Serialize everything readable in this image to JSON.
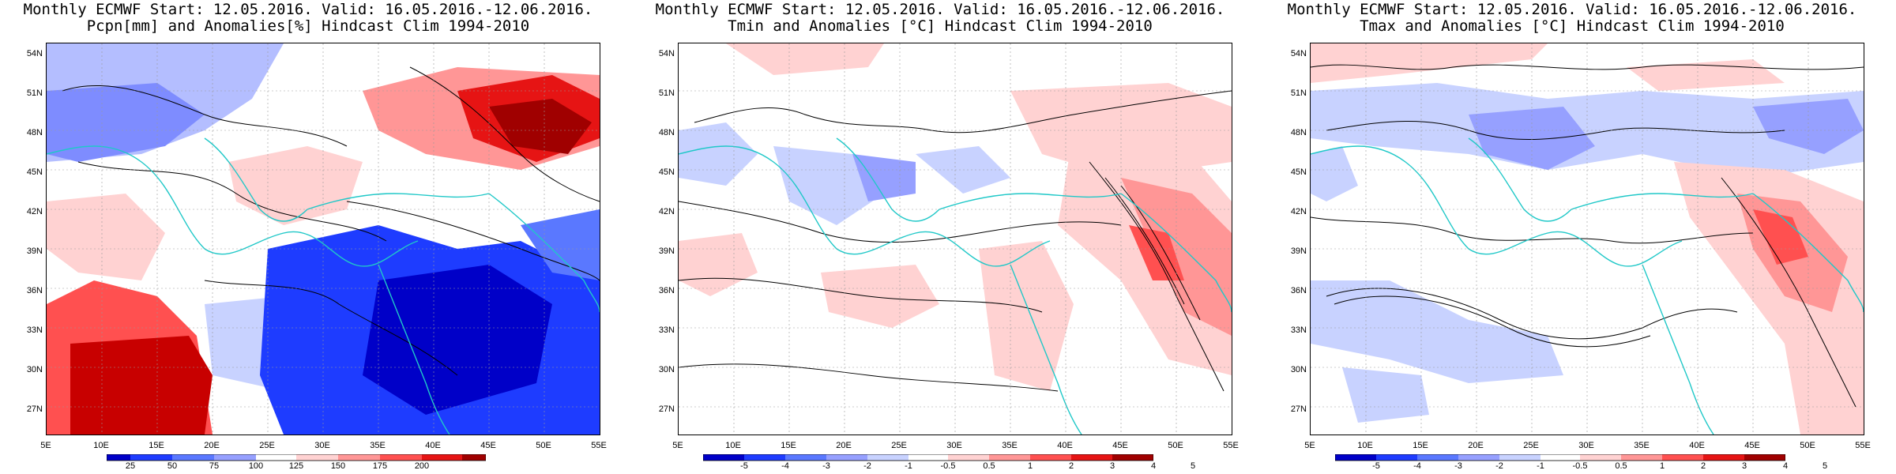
{
  "panels": [
    {
      "id": "pcpn",
      "title_line1": "Monthly ECMWF Start: 12.05.2016. Valid: 16.05.2016.-12.06.2016.",
      "title_line2": "Pcpn[mm] and Anomalies[%] Hindcast Clim 1994-2010",
      "colorbar": {
        "colors": [
          "#0000c8",
          "#1e3cff",
          "#5a78ff",
          "#96a0ff",
          "#c8d2ff",
          "#ffffff",
          "#ffd2d2",
          "#ff9696",
          "#ff5050",
          "#e61414",
          "#a00000"
        ],
        "labels": [
          "25",
          "50",
          "75",
          "100",
          "125",
          "150",
          "175",
          "200"
        ]
      }
    },
    {
      "id": "tmin",
      "title_line1": "Monthly ECMWF Start: 12.05.2016. Valid: 16.05.2016.-12.06.2016.",
      "title_line2": "Tmin and Anomalies [°C] Hindcast Clim 1994-2010",
      "colorbar": {
        "colors": [
          "#0000c8",
          "#1e3cff",
          "#5a78ff",
          "#96a0ff",
          "#c8d2ff",
          "#ffffff",
          "#ffd2d2",
          "#ff9696",
          "#ff5050",
          "#e61414",
          "#a00000"
        ],
        "labels": [
          "-5",
          "-4",
          "-3",
          "-2",
          "-1",
          "-0.5",
          "0.5",
          "1",
          "2",
          "3",
          "4",
          "5"
        ]
      }
    },
    {
      "id": "tmax",
      "title_line1": "Monthly ECMWF Start: 12.05.2016. Valid: 16.05.2016.-12.06.2016.",
      "title_line2": "Tmax and Anomalies [°C] Hindcast Clim 1994-2010",
      "colorbar": {
        "colors": [
          "#0000c8",
          "#1e3cff",
          "#5a78ff",
          "#96a0ff",
          "#c8d2ff",
          "#ffffff",
          "#ffd2d2",
          "#ff9696",
          "#ff5050",
          "#e61414",
          "#a00000"
        ],
        "labels": [
          "-5",
          "-4",
          "-3",
          "-2",
          "-1",
          "-0.5",
          "0.5",
          "1",
          "2",
          "3",
          "4",
          "5"
        ]
      }
    }
  ],
  "lat_labels": [
    "54N",
    "51N",
    "48N",
    "45N",
    "42N",
    "39N",
    "36N",
    "33N",
    "30N",
    "27N"
  ],
  "lon_labels": [
    "5E",
    "10E",
    "15E",
    "20E",
    "25E",
    "30E",
    "35E",
    "40E",
    "45E",
    "50E",
    "55E"
  ],
  "colors": {
    "coast": "#20c8c8",
    "contour": "#000000"
  }
}
